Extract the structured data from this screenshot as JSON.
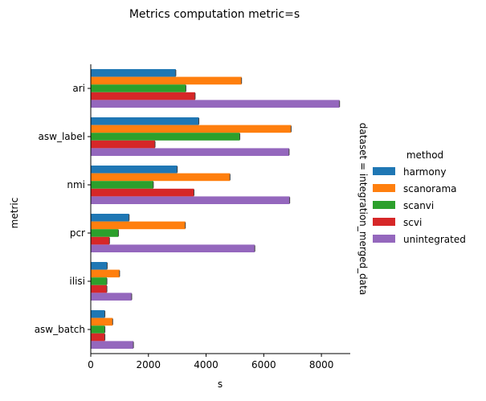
{
  "chart_data": {
    "type": "bar",
    "orientation": "horizontal",
    "title": "Metrics computation metric=s",
    "xlabel": "s",
    "ylabel": "metric",
    "facet_label": "dataset = integration_merged_data",
    "xlim": [
      0,
      9000
    ],
    "xticks": [
      0,
      2000,
      4000,
      6000,
      8000
    ],
    "grid": false,
    "legend_title": "method",
    "legend_position": "right",
    "categories": [
      "ari",
      "asw_label",
      "nmi",
      "pcr",
      "ilisi",
      "asw_batch"
    ],
    "series": [
      {
        "name": "harmony",
        "color": "#1f77b4",
        "values": [
          2950,
          3750,
          3000,
          1330,
          570,
          490
        ]
      },
      {
        "name": "scanorama",
        "color": "#ff7f0e",
        "values": [
          5230,
          6950,
          4830,
          3280,
          1000,
          760
        ]
      },
      {
        "name": "scanvi",
        "color": "#2ca02c",
        "values": [
          3300,
          5170,
          2170,
          960,
          560,
          490
        ]
      },
      {
        "name": "scvi",
        "color": "#d62728",
        "values": [
          3620,
          2230,
          3580,
          650,
          560,
          490
        ]
      },
      {
        "name": "unintegrated",
        "color": "#9467bd",
        "values": [
          8630,
          6880,
          6900,
          5690,
          1420,
          1480
        ]
      }
    ]
  }
}
